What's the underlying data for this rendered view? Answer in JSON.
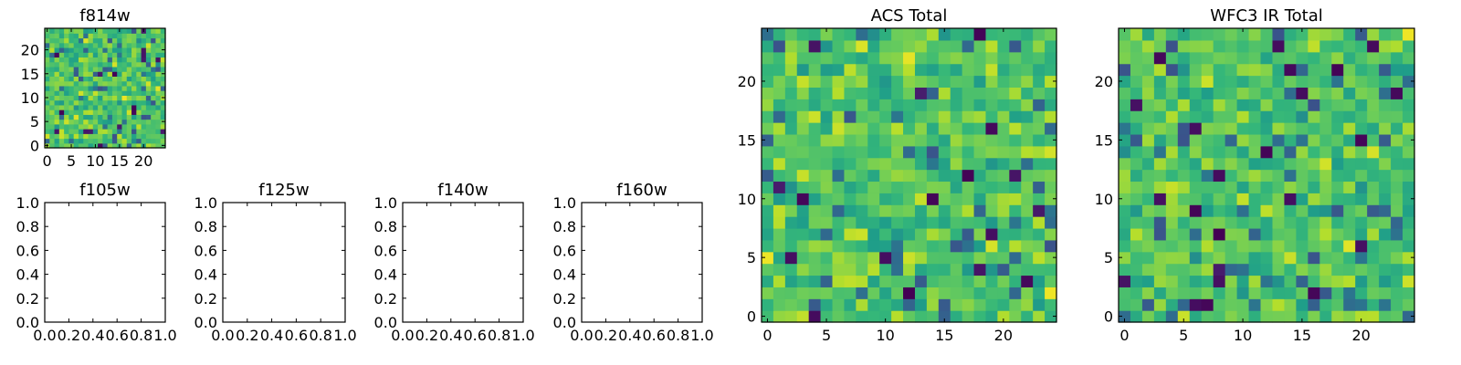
{
  "colormap": "viridis",
  "chart_data": [
    {
      "id": "f814w",
      "type": "heatmap",
      "title": "f814w",
      "xlabel": "",
      "ylabel": "",
      "xlim": [
        -0.5,
        24.5
      ],
      "ylim": [
        -0.5,
        24.5
      ],
      "xticks": [
        0,
        5,
        10,
        15,
        20
      ],
      "yticks": [
        0,
        5,
        10,
        15,
        20
      ],
      "size": [
        25,
        25
      ],
      "values": "noise"
    },
    {
      "id": "f105w",
      "type": "empty",
      "title": "f105w",
      "xlabel": "",
      "ylabel": "",
      "xlim": [
        0,
        1
      ],
      "ylim": [
        0,
        1
      ],
      "xticks": [
        0.0,
        0.2,
        0.4,
        0.6,
        0.8,
        1.0
      ],
      "yticks": [
        0.0,
        0.2,
        0.4,
        0.6,
        0.8,
        1.0
      ]
    },
    {
      "id": "f125w",
      "type": "empty",
      "title": "f125w",
      "xlabel": "",
      "ylabel": "",
      "xlim": [
        0,
        1
      ],
      "ylim": [
        0,
        1
      ],
      "xticks": [
        0.0,
        0.2,
        0.4,
        0.6,
        0.8,
        1.0
      ],
      "yticks": [
        0.0,
        0.2,
        0.4,
        0.6,
        0.8,
        1.0
      ]
    },
    {
      "id": "f140w",
      "type": "empty",
      "title": "f140w",
      "xlabel": "",
      "ylabel": "",
      "xlim": [
        0,
        1
      ],
      "ylim": [
        0,
        1
      ],
      "xticks": [
        0.0,
        0.2,
        0.4,
        0.6,
        0.8,
        1.0
      ],
      "yticks": [
        0.0,
        0.2,
        0.4,
        0.6,
        0.8,
        1.0
      ]
    },
    {
      "id": "f160w",
      "type": "empty",
      "title": "f160w",
      "xlabel": "",
      "ylabel": "",
      "xlim": [
        0,
        1
      ],
      "ylim": [
        0,
        1
      ],
      "xticks": [
        0.0,
        0.2,
        0.4,
        0.6,
        0.8,
        1.0
      ],
      "yticks": [
        0.0,
        0.2,
        0.4,
        0.6,
        0.8,
        1.0
      ]
    },
    {
      "id": "acs_total",
      "type": "heatmap",
      "title": "ACS Total",
      "xlabel": "",
      "ylabel": "",
      "xlim": [
        -0.5,
        24.5
      ],
      "ylim": [
        -0.5,
        24.5
      ],
      "xticks": [
        0,
        5,
        10,
        15,
        20
      ],
      "yticks": [
        0,
        5,
        10,
        15,
        20
      ],
      "size": [
        25,
        25
      ],
      "values": "noise"
    },
    {
      "id": "wfc3_ir_total",
      "type": "heatmap",
      "title": "WFC3 IR Total",
      "xlabel": "",
      "ylabel": "",
      "xlim": [
        -0.5,
        24.5
      ],
      "ylim": [
        -0.5,
        24.5
      ],
      "xticks": [
        0,
        5,
        10,
        15,
        20
      ],
      "yticks": [
        0,
        5,
        10,
        15,
        20
      ],
      "size": [
        25,
        25
      ],
      "values": "noise"
    }
  ]
}
